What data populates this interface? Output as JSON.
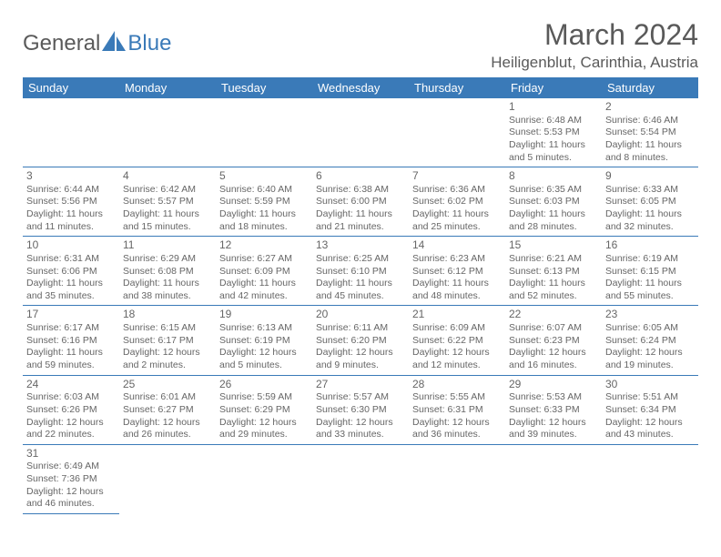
{
  "logo": {
    "part1": "General",
    "part2": "Blue"
  },
  "title": "March 2024",
  "location": "Heiligenblut, Carinthia, Austria",
  "colors": {
    "header_bg": "#3a7ab8",
    "header_text": "#ffffff",
    "border": "#3a7ab8",
    "text": "#666666",
    "title_text": "#5a5a5a",
    "page_bg": "#ffffff"
  },
  "weekdays": [
    "Sunday",
    "Monday",
    "Tuesday",
    "Wednesday",
    "Thursday",
    "Friday",
    "Saturday"
  ],
  "weeks": [
    [
      {
        "day": "",
        "lines": []
      },
      {
        "day": "",
        "lines": []
      },
      {
        "day": "",
        "lines": []
      },
      {
        "day": "",
        "lines": []
      },
      {
        "day": "",
        "lines": []
      },
      {
        "day": "1",
        "lines": [
          "Sunrise: 6:48 AM",
          "Sunset: 5:53 PM",
          "Daylight: 11 hours",
          "and 5 minutes."
        ]
      },
      {
        "day": "2",
        "lines": [
          "Sunrise: 6:46 AM",
          "Sunset: 5:54 PM",
          "Daylight: 11 hours",
          "and 8 minutes."
        ]
      }
    ],
    [
      {
        "day": "3",
        "lines": [
          "Sunrise: 6:44 AM",
          "Sunset: 5:56 PM",
          "Daylight: 11 hours",
          "and 11 minutes."
        ]
      },
      {
        "day": "4",
        "lines": [
          "Sunrise: 6:42 AM",
          "Sunset: 5:57 PM",
          "Daylight: 11 hours",
          "and 15 minutes."
        ]
      },
      {
        "day": "5",
        "lines": [
          "Sunrise: 6:40 AM",
          "Sunset: 5:59 PM",
          "Daylight: 11 hours",
          "and 18 minutes."
        ]
      },
      {
        "day": "6",
        "lines": [
          "Sunrise: 6:38 AM",
          "Sunset: 6:00 PM",
          "Daylight: 11 hours",
          "and 21 minutes."
        ]
      },
      {
        "day": "7",
        "lines": [
          "Sunrise: 6:36 AM",
          "Sunset: 6:02 PM",
          "Daylight: 11 hours",
          "and 25 minutes."
        ]
      },
      {
        "day": "8",
        "lines": [
          "Sunrise: 6:35 AM",
          "Sunset: 6:03 PM",
          "Daylight: 11 hours",
          "and 28 minutes."
        ]
      },
      {
        "day": "9",
        "lines": [
          "Sunrise: 6:33 AM",
          "Sunset: 6:05 PM",
          "Daylight: 11 hours",
          "and 32 minutes."
        ]
      }
    ],
    [
      {
        "day": "10",
        "lines": [
          "Sunrise: 6:31 AM",
          "Sunset: 6:06 PM",
          "Daylight: 11 hours",
          "and 35 minutes."
        ]
      },
      {
        "day": "11",
        "lines": [
          "Sunrise: 6:29 AM",
          "Sunset: 6:08 PM",
          "Daylight: 11 hours",
          "and 38 minutes."
        ]
      },
      {
        "day": "12",
        "lines": [
          "Sunrise: 6:27 AM",
          "Sunset: 6:09 PM",
          "Daylight: 11 hours",
          "and 42 minutes."
        ]
      },
      {
        "day": "13",
        "lines": [
          "Sunrise: 6:25 AM",
          "Sunset: 6:10 PM",
          "Daylight: 11 hours",
          "and 45 minutes."
        ]
      },
      {
        "day": "14",
        "lines": [
          "Sunrise: 6:23 AM",
          "Sunset: 6:12 PM",
          "Daylight: 11 hours",
          "and 48 minutes."
        ]
      },
      {
        "day": "15",
        "lines": [
          "Sunrise: 6:21 AM",
          "Sunset: 6:13 PM",
          "Daylight: 11 hours",
          "and 52 minutes."
        ]
      },
      {
        "day": "16",
        "lines": [
          "Sunrise: 6:19 AM",
          "Sunset: 6:15 PM",
          "Daylight: 11 hours",
          "and 55 minutes."
        ]
      }
    ],
    [
      {
        "day": "17",
        "lines": [
          "Sunrise: 6:17 AM",
          "Sunset: 6:16 PM",
          "Daylight: 11 hours",
          "and 59 minutes."
        ]
      },
      {
        "day": "18",
        "lines": [
          "Sunrise: 6:15 AM",
          "Sunset: 6:17 PM",
          "Daylight: 12 hours",
          "and 2 minutes."
        ]
      },
      {
        "day": "19",
        "lines": [
          "Sunrise: 6:13 AM",
          "Sunset: 6:19 PM",
          "Daylight: 12 hours",
          "and 5 minutes."
        ]
      },
      {
        "day": "20",
        "lines": [
          "Sunrise: 6:11 AM",
          "Sunset: 6:20 PM",
          "Daylight: 12 hours",
          "and 9 minutes."
        ]
      },
      {
        "day": "21",
        "lines": [
          "Sunrise: 6:09 AM",
          "Sunset: 6:22 PM",
          "Daylight: 12 hours",
          "and 12 minutes."
        ]
      },
      {
        "day": "22",
        "lines": [
          "Sunrise: 6:07 AM",
          "Sunset: 6:23 PM",
          "Daylight: 12 hours",
          "and 16 minutes."
        ]
      },
      {
        "day": "23",
        "lines": [
          "Sunrise: 6:05 AM",
          "Sunset: 6:24 PM",
          "Daylight: 12 hours",
          "and 19 minutes."
        ]
      }
    ],
    [
      {
        "day": "24",
        "lines": [
          "Sunrise: 6:03 AM",
          "Sunset: 6:26 PM",
          "Daylight: 12 hours",
          "and 22 minutes."
        ]
      },
      {
        "day": "25",
        "lines": [
          "Sunrise: 6:01 AM",
          "Sunset: 6:27 PM",
          "Daylight: 12 hours",
          "and 26 minutes."
        ]
      },
      {
        "day": "26",
        "lines": [
          "Sunrise: 5:59 AM",
          "Sunset: 6:29 PM",
          "Daylight: 12 hours",
          "and 29 minutes."
        ]
      },
      {
        "day": "27",
        "lines": [
          "Sunrise: 5:57 AM",
          "Sunset: 6:30 PM",
          "Daylight: 12 hours",
          "and 33 minutes."
        ]
      },
      {
        "day": "28",
        "lines": [
          "Sunrise: 5:55 AM",
          "Sunset: 6:31 PM",
          "Daylight: 12 hours",
          "and 36 minutes."
        ]
      },
      {
        "day": "29",
        "lines": [
          "Sunrise: 5:53 AM",
          "Sunset: 6:33 PM",
          "Daylight: 12 hours",
          "and 39 minutes."
        ]
      },
      {
        "day": "30",
        "lines": [
          "Sunrise: 5:51 AM",
          "Sunset: 6:34 PM",
          "Daylight: 12 hours",
          "and 43 minutes."
        ]
      }
    ],
    [
      {
        "day": "31",
        "lines": [
          "Sunrise: 6:49 AM",
          "Sunset: 7:36 PM",
          "Daylight: 12 hours",
          "and 46 minutes."
        ]
      },
      {
        "day": "",
        "lines": []
      },
      {
        "day": "",
        "lines": []
      },
      {
        "day": "",
        "lines": []
      },
      {
        "day": "",
        "lines": []
      },
      {
        "day": "",
        "lines": []
      },
      {
        "day": "",
        "lines": []
      }
    ]
  ]
}
